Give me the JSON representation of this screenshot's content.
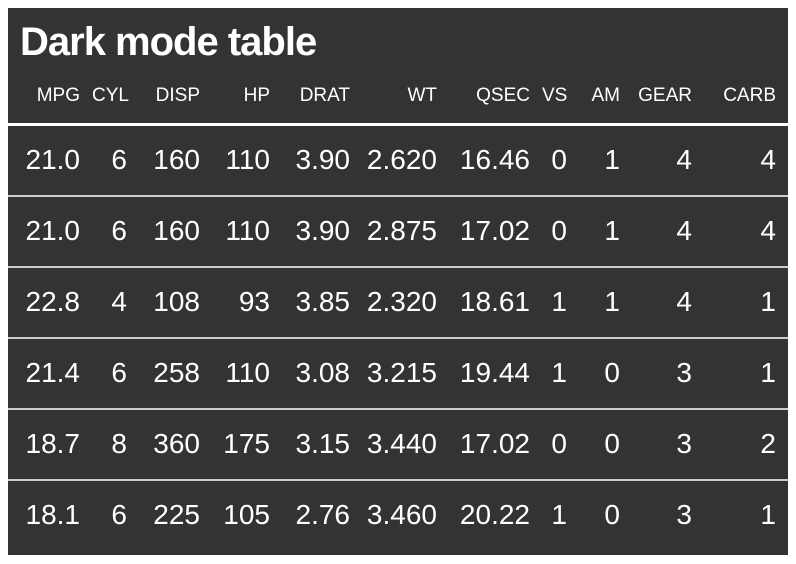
{
  "chart_data": {
    "type": "table",
    "title": "Dark mode table",
    "columns": [
      "MPG",
      "CYL",
      "DISP",
      "HP",
      "DRAT",
      "WT",
      "QSEC",
      "VS",
      "AM",
      "GEAR",
      "CARB"
    ],
    "rows": [
      [
        "21.0",
        "6",
        "160",
        "110",
        "3.90",
        "2.620",
        "16.46",
        "0",
        "1",
        "4",
        "4"
      ],
      [
        "21.0",
        "6",
        "160",
        "110",
        "3.90",
        "2.875",
        "17.02",
        "0",
        "1",
        "4",
        "4"
      ],
      [
        "22.8",
        "4",
        "108",
        "93",
        "3.85",
        "2.320",
        "18.61",
        "1",
        "1",
        "4",
        "1"
      ],
      [
        "21.4",
        "6",
        "258",
        "110",
        "3.08",
        "3.215",
        "19.44",
        "1",
        "0",
        "3",
        "1"
      ],
      [
        "18.7",
        "8",
        "360",
        "175",
        "3.15",
        "3.440",
        "17.02",
        "0",
        "0",
        "3",
        "2"
      ],
      [
        "18.1",
        "6",
        "225",
        "105",
        "2.76",
        "3.460",
        "20.22",
        "1",
        "0",
        "3",
        "1"
      ]
    ],
    "layout": {
      "alignment": "right",
      "background_color": "#333333",
      "text_color": "#ffffff",
      "header_border_color": "#ffffff",
      "row_border_color": "#cccccc",
      "page_background": "#ffffff"
    }
  }
}
